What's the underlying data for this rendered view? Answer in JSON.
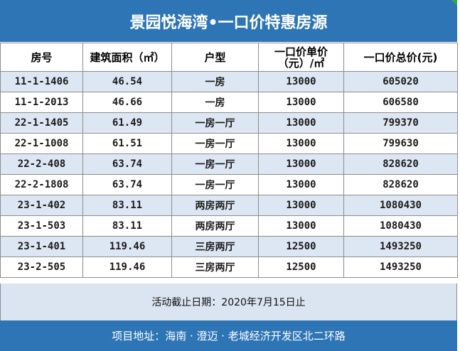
{
  "title": "景园悦海湾•一口价特惠房源",
  "headers": {
    "room": "房号",
    "area": "建筑面积（㎡）",
    "layout": "户型",
    "unit_price_line1": "一口价单价",
    "unit_price_line2": "（元）/㎡",
    "total": "一口价总价(元)"
  },
  "rows": [
    {
      "room": "11-1-1406",
      "area": "46.54",
      "layout": "一房",
      "unit_price": "13000",
      "total": "605020"
    },
    {
      "room": "11-1-2013",
      "area": "46.66",
      "layout": "一房",
      "unit_price": "13000",
      "total": "606580"
    },
    {
      "room": "22-1-1405",
      "area": "61.49",
      "layout": "一房一厅",
      "unit_price": "13000",
      "total": "799370"
    },
    {
      "room": "22-1-1008",
      "area": "61.51",
      "layout": "一房一厅",
      "unit_price": "13000",
      "total": "799630"
    },
    {
      "room": "22-2-408",
      "area": "63.74",
      "layout": "一房一厅",
      "unit_price": "13000",
      "total": "828620"
    },
    {
      "room": "22-2-1808",
      "area": "63.74",
      "layout": "一房一厅",
      "unit_price": "13000",
      "total": "828620"
    },
    {
      "room": "23-1-402",
      "area": "83.11",
      "layout": "两房两厅",
      "unit_price": "13000",
      "total": "1080430"
    },
    {
      "room": "23-1-503",
      "area": "83.11",
      "layout": "两房两厅",
      "unit_price": "13000",
      "total": "1080430"
    },
    {
      "room": "23-1-401",
      "area": "119.46",
      "layout": "三房两厅",
      "unit_price": "12500",
      "total": "1493250"
    },
    {
      "room": "23-2-505",
      "area": "119.46",
      "layout": "三房两厅",
      "unit_price": "12500",
      "total": "1493250"
    }
  ],
  "deadline_note": "活动截止日期：2020年7月15日止",
  "address": "项目地址：海南 · 澄迈 · 老城经济开发区北二环路",
  "colors": {
    "header_blue": "#2e75b6",
    "row_alt": "#dde7f3",
    "footer_light": "#dbe5f1"
  }
}
